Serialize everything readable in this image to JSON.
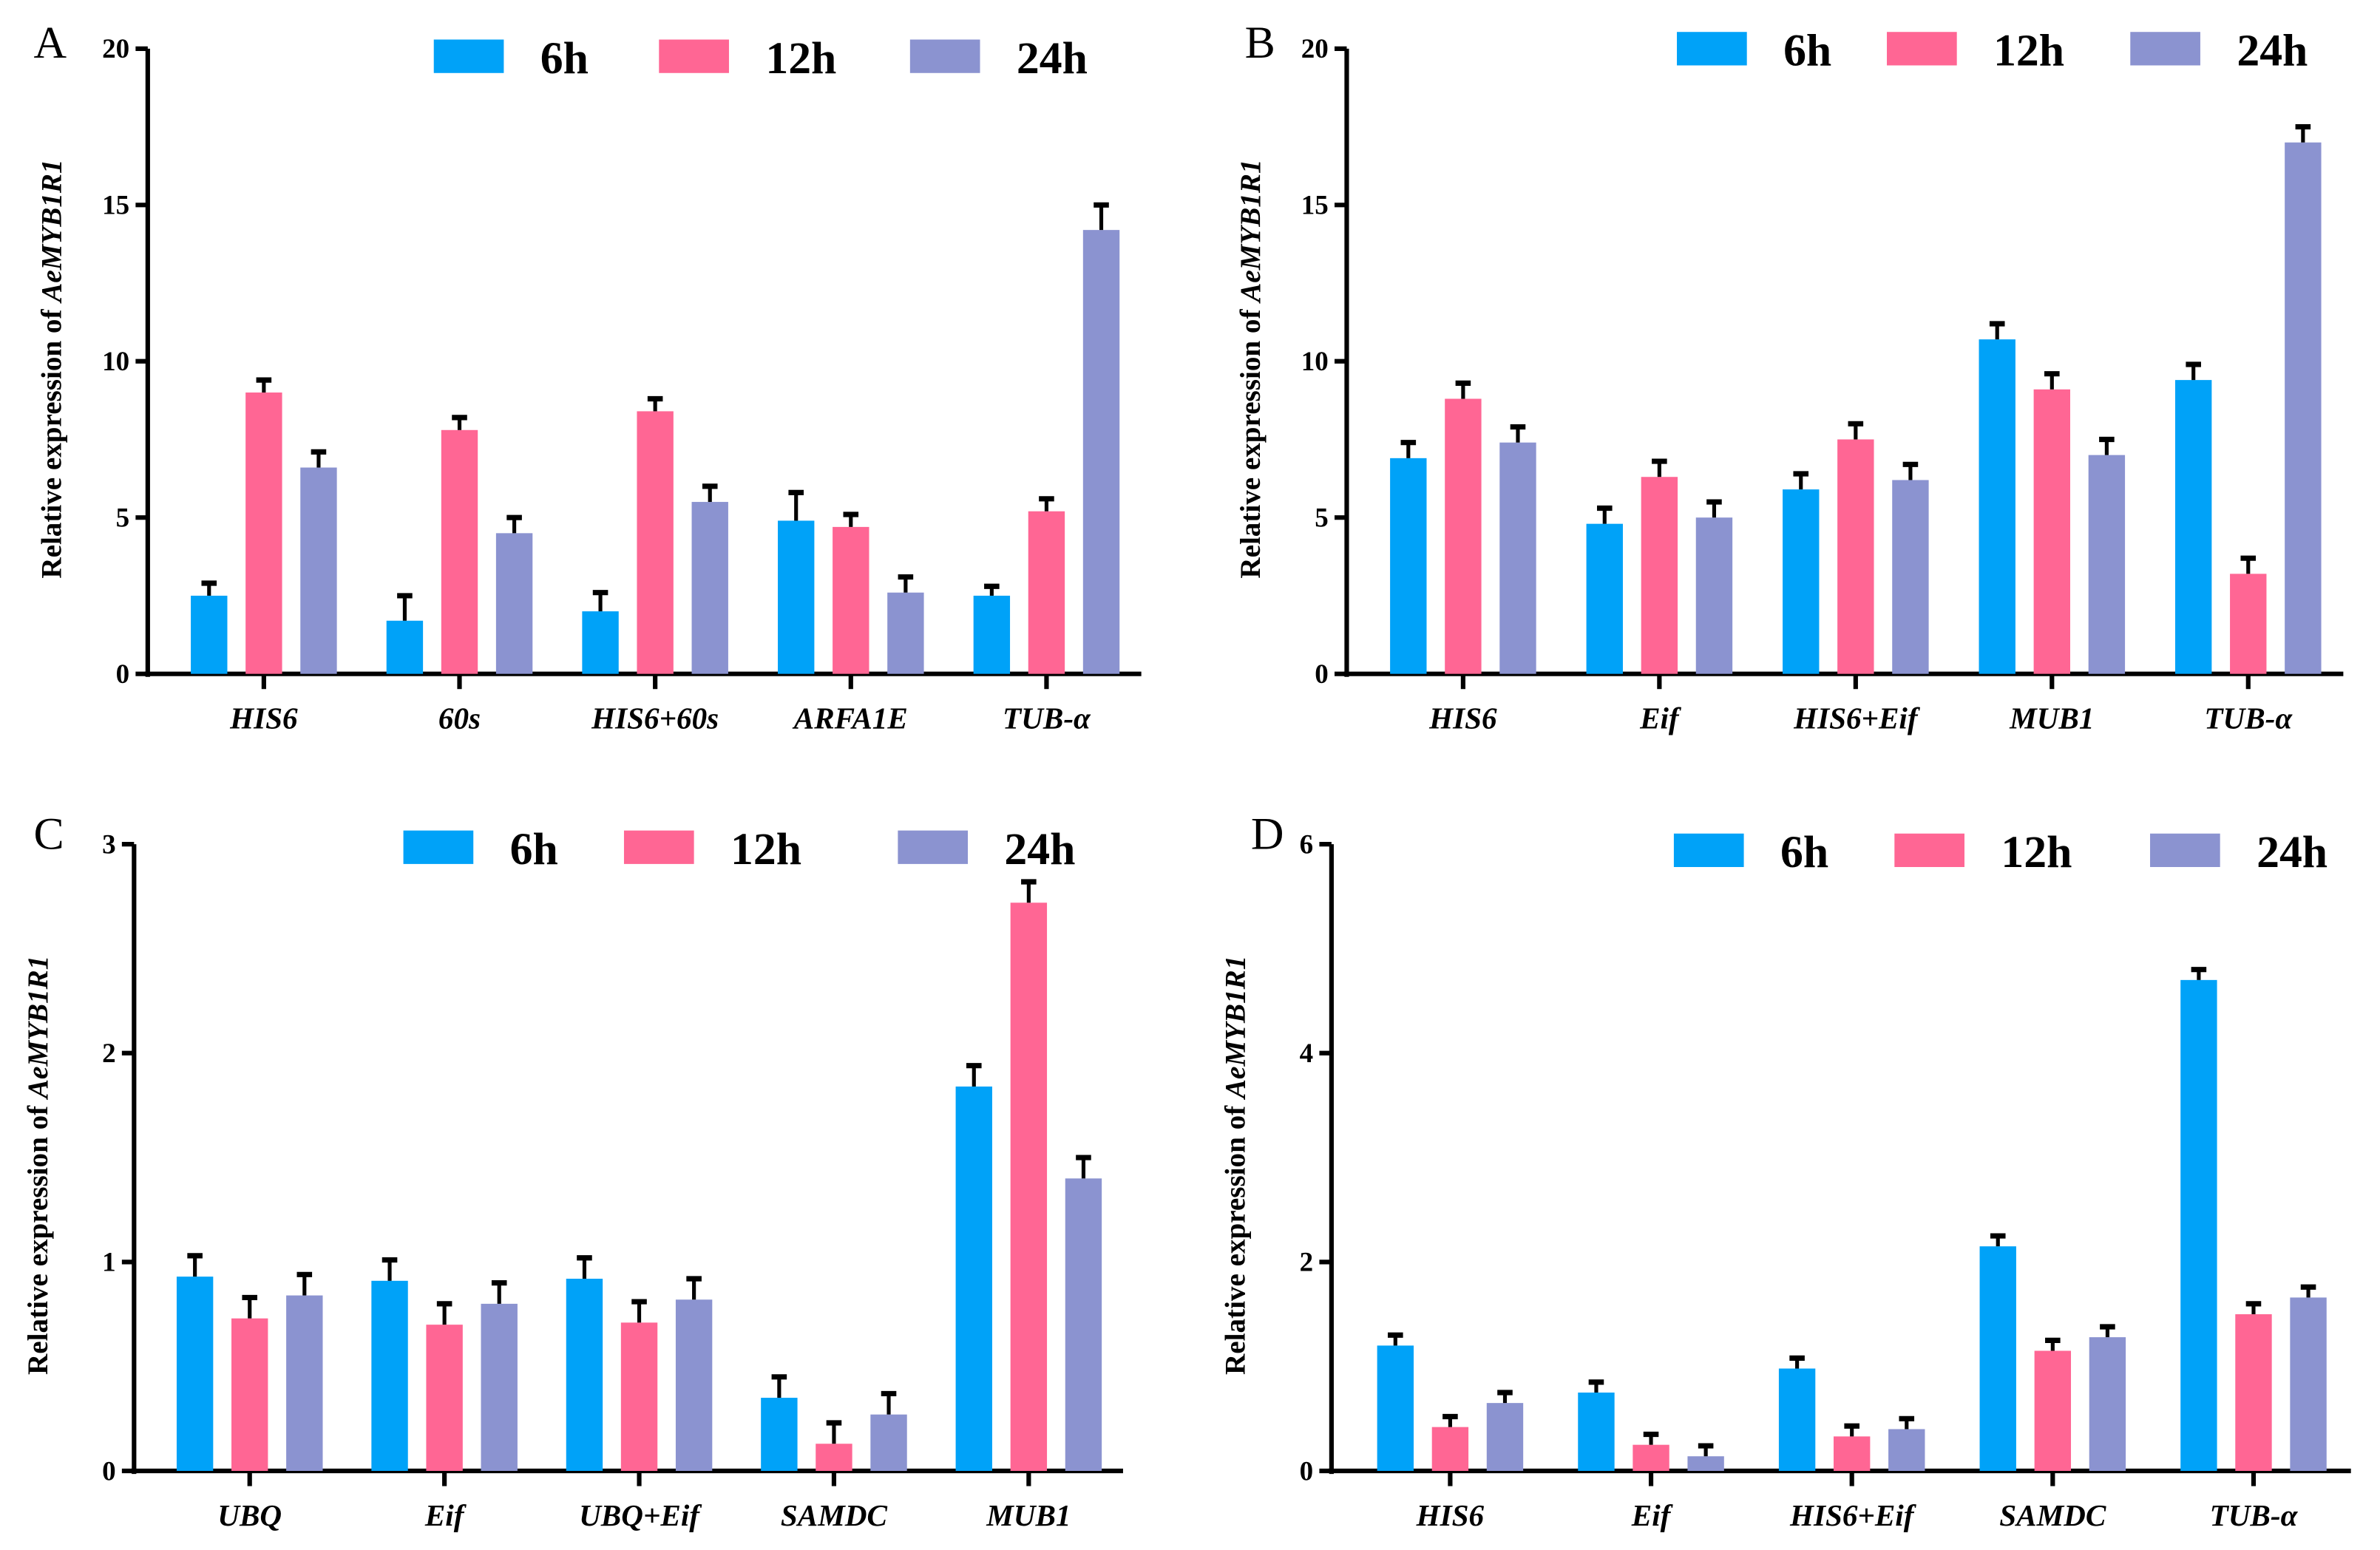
{
  "colors": {
    "6h": "#00a2f8",
    "12h": "#ff6694",
    "24h": "#8b93d0"
  },
  "chart_data": [
    {
      "type": "bar",
      "panel": "A",
      "categories": [
        "HIS6",
        "60s",
        "HIS6+60s",
        "ARFA1E",
        "TUB-α"
      ],
      "ylabel_prefix": "Relative expression of ",
      "ylabel_gene": "AeMYB1R1",
      "ylim": [
        0,
        20
      ],
      "yticks": [
        "0",
        "5",
        "10",
        "15",
        "20"
      ],
      "ytick_values": [
        0,
        5,
        10,
        15,
        20
      ],
      "legend": [
        "6h",
        "12h",
        "24h"
      ],
      "legend_position": "top",
      "series": [
        {
          "name": "6h",
          "values": [
            2.5,
            1.7,
            2.0,
            4.9,
            2.5
          ],
          "errors": [
            0.4,
            0.8,
            0.6,
            0.9,
            0.3
          ]
        },
        {
          "name": "12h",
          "values": [
            9.0,
            7.8,
            8.4,
            4.7,
            5.2
          ],
          "errors": [
            0.4,
            0.4,
            0.4,
            0.4,
            0.4
          ]
        },
        {
          "name": "24h",
          "values": [
            6.6,
            4.5,
            5.5,
            2.6,
            14.2
          ],
          "errors": [
            0.5,
            0.5,
            0.5,
            0.5,
            0.8
          ]
        }
      ]
    },
    {
      "type": "bar",
      "panel": "B",
      "categories": [
        "HIS6",
        "Eif",
        "HIS6+Eif",
        "MUB1",
        "TUB-α"
      ],
      "ylabel_prefix": "Relative expression of ",
      "ylabel_gene": "AeMYB1R1",
      "ylim": [
        0,
        20
      ],
      "yticks": [
        "0",
        "5",
        "10",
        "15",
        "20"
      ],
      "ytick_values": [
        0,
        5,
        10,
        15,
        20
      ],
      "legend": [
        "6h",
        "12h",
        "24h"
      ],
      "legend_position": "top",
      "series": [
        {
          "name": "6h",
          "values": [
            6.9,
            4.8,
            5.9,
            10.7,
            9.4
          ],
          "errors": [
            0.5,
            0.5,
            0.5,
            0.5,
            0.5
          ]
        },
        {
          "name": "12h",
          "values": [
            8.8,
            6.3,
            7.5,
            9.1,
            3.2
          ],
          "errors": [
            0.5,
            0.5,
            0.5,
            0.5,
            0.5
          ]
        },
        {
          "name": "24h",
          "values": [
            7.4,
            5.0,
            6.2,
            7.0,
            17.0
          ],
          "errors": [
            0.5,
            0.5,
            0.5,
            0.5,
            0.5
          ]
        }
      ]
    },
    {
      "type": "bar",
      "panel": "C",
      "categories": [
        "UBQ",
        "Eif",
        "UBQ+Eif",
        "SAMDC",
        "MUB1"
      ],
      "ylabel_prefix": "Relative expression of ",
      "ylabel_gene": "AeMYB1R1",
      "ylim": [
        0,
        3
      ],
      "yticks": [
        "0",
        "1",
        "2",
        "3"
      ],
      "ytick_values": [
        0,
        1,
        2,
        3
      ],
      "legend": [
        "6h",
        "12h",
        "24h"
      ],
      "legend_position": "top",
      "series": [
        {
          "name": "6h",
          "values": [
            0.93,
            0.91,
            0.92,
            0.35,
            1.84
          ],
          "errors": [
            0.1,
            0.1,
            0.1,
            0.1,
            0.1
          ]
        },
        {
          "name": "12h",
          "values": [
            0.73,
            0.7,
            0.71,
            0.13,
            2.72
          ],
          "errors": [
            0.1,
            0.1,
            0.1,
            0.1,
            0.1
          ]
        },
        {
          "name": "24h",
          "values": [
            0.84,
            0.8,
            0.82,
            0.27,
            1.4
          ],
          "errors": [
            0.1,
            0.1,
            0.1,
            0.1,
            0.1
          ]
        }
      ]
    },
    {
      "type": "bar",
      "panel": "D",
      "categories": [
        "HIS6",
        "Eif",
        "HIS6+Eif",
        "SAMDC",
        "TUB-α"
      ],
      "ylabel_prefix": "Relative expression of ",
      "ylabel_gene": "AeMYB1R1",
      "ylim": [
        0,
        6
      ],
      "yticks": [
        "0",
        "2",
        "4",
        "6"
      ],
      "ytick_values": [
        0,
        2,
        4,
        6
      ],
      "legend": [
        "6h",
        "12h",
        "24h"
      ],
      "legend_position": "top",
      "series": [
        {
          "name": "6h",
          "values": [
            1.2,
            0.75,
            0.98,
            2.15,
            4.7
          ],
          "errors": [
            0.1,
            0.1,
            0.1,
            0.1,
            0.1
          ]
        },
        {
          "name": "12h",
          "values": [
            0.42,
            0.25,
            0.33,
            1.15,
            1.5
          ],
          "errors": [
            0.1,
            0.1,
            0.1,
            0.1,
            0.1
          ]
        },
        {
          "name": "24h",
          "values": [
            0.65,
            0.14,
            0.4,
            1.28,
            1.66
          ],
          "errors": [
            0.1,
            0.1,
            0.1,
            0.1,
            0.1
          ]
        }
      ]
    }
  ]
}
